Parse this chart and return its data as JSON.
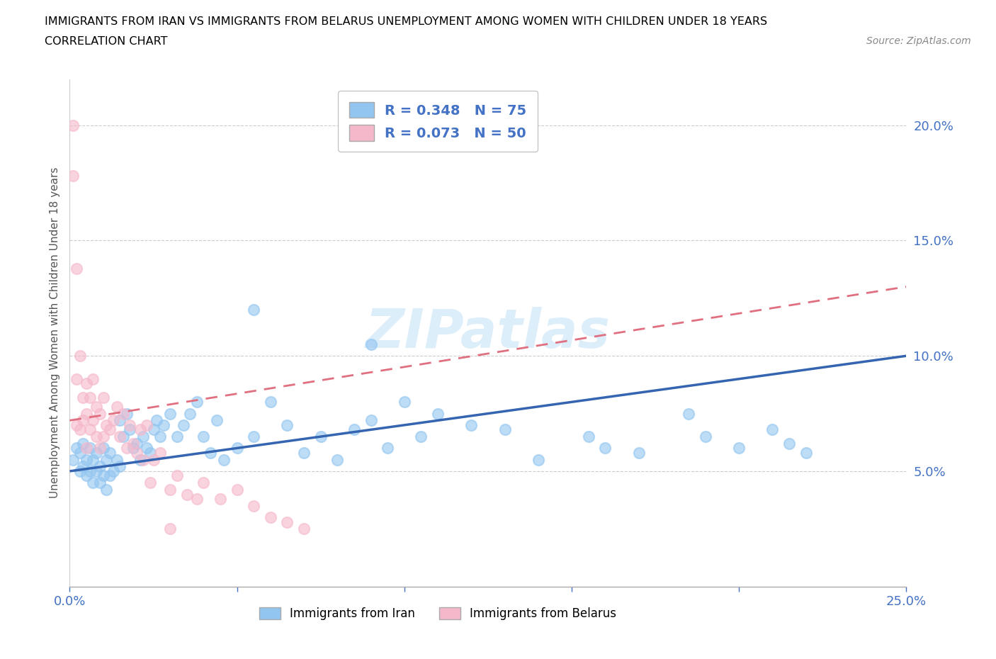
{
  "title_line1": "IMMIGRANTS FROM IRAN VS IMMIGRANTS FROM BELARUS UNEMPLOYMENT AMONG WOMEN WITH CHILDREN UNDER 18 YEARS",
  "title_line2": "CORRELATION CHART",
  "source": "Source: ZipAtlas.com",
  "ylabel": "Unemployment Among Women with Children Under 18 years",
  "xlim": [
    0.0,
    0.25
  ],
  "ylim": [
    0.0,
    0.22
  ],
  "iran_color": "#92c5f0",
  "belarus_color": "#f5b8cb",
  "iran_line_color": "#3565b0",
  "belarus_line_color": "#e07080",
  "iran_R": 0.348,
  "iran_N": 75,
  "belarus_R": 0.073,
  "belarus_N": 50,
  "legend_label_iran": "Immigrants from Iran",
  "legend_label_belarus": "Immigrants from Belarus",
  "watermark": "ZIPatlas",
  "iran_trend_start_y": 0.05,
  "iran_trend_end_y": 0.1,
  "belarus_trend_start_y": 0.072,
  "belarus_trend_end_y": 0.13,
  "iran_x": [
    0.001,
    0.002,
    0.003,
    0.003,
    0.004,
    0.004,
    0.005,
    0.005,
    0.006,
    0.006,
    0.007,
    0.007,
    0.008,
    0.008,
    0.009,
    0.009,
    0.01,
    0.01,
    0.011,
    0.011,
    0.012,
    0.012,
    0.013,
    0.014,
    0.015,
    0.015,
    0.016,
    0.017,
    0.018,
    0.019,
    0.02,
    0.021,
    0.022,
    0.023,
    0.024,
    0.025,
    0.026,
    0.027,
    0.028,
    0.03,
    0.032,
    0.034,
    0.036,
    0.038,
    0.04,
    0.042,
    0.044,
    0.046,
    0.05,
    0.055,
    0.06,
    0.065,
    0.07,
    0.075,
    0.08,
    0.085,
    0.09,
    0.095,
    0.1,
    0.105,
    0.11,
    0.12,
    0.13,
    0.14,
    0.155,
    0.16,
    0.17,
    0.185,
    0.19,
    0.2,
    0.21,
    0.215,
    0.22,
    0.055,
    0.09
  ],
  "iran_y": [
    0.055,
    0.06,
    0.05,
    0.058,
    0.052,
    0.062,
    0.048,
    0.055,
    0.05,
    0.06,
    0.045,
    0.055,
    0.05,
    0.058,
    0.045,
    0.052,
    0.048,
    0.06,
    0.042,
    0.055,
    0.048,
    0.058,
    0.05,
    0.055,
    0.052,
    0.072,
    0.065,
    0.075,
    0.068,
    0.06,
    0.062,
    0.055,
    0.065,
    0.06,
    0.058,
    0.068,
    0.072,
    0.065,
    0.07,
    0.075,
    0.065,
    0.07,
    0.075,
    0.08,
    0.065,
    0.058,
    0.072,
    0.055,
    0.06,
    0.065,
    0.08,
    0.07,
    0.058,
    0.065,
    0.055,
    0.068,
    0.072,
    0.06,
    0.08,
    0.065,
    0.075,
    0.07,
    0.068,
    0.055,
    0.065,
    0.06,
    0.058,
    0.075,
    0.065,
    0.06,
    0.068,
    0.062,
    0.058,
    0.12,
    0.105
  ],
  "belarus_x": [
    0.001,
    0.001,
    0.002,
    0.002,
    0.002,
    0.003,
    0.003,
    0.004,
    0.004,
    0.005,
    0.005,
    0.005,
    0.006,
    0.006,
    0.007,
    0.007,
    0.008,
    0.008,
    0.009,
    0.009,
    0.01,
    0.01,
    0.011,
    0.012,
    0.013,
    0.014,
    0.015,
    0.016,
    0.017,
    0.018,
    0.019,
    0.02,
    0.021,
    0.022,
    0.023,
    0.024,
    0.025,
    0.027,
    0.03,
    0.032,
    0.035,
    0.038,
    0.04,
    0.045,
    0.05,
    0.055,
    0.06,
    0.065,
    0.07,
    0.03
  ],
  "belarus_y": [
    0.2,
    0.178,
    0.138,
    0.09,
    0.07,
    0.068,
    0.1,
    0.082,
    0.072,
    0.075,
    0.088,
    0.06,
    0.082,
    0.068,
    0.072,
    0.09,
    0.065,
    0.078,
    0.06,
    0.075,
    0.082,
    0.065,
    0.07,
    0.068,
    0.072,
    0.078,
    0.065,
    0.075,
    0.06,
    0.07,
    0.062,
    0.058,
    0.068,
    0.055,
    0.07,
    0.045,
    0.055,
    0.058,
    0.042,
    0.048,
    0.04,
    0.038,
    0.045,
    0.038,
    0.042,
    0.035,
    0.03,
    0.028,
    0.025,
    0.025
  ]
}
